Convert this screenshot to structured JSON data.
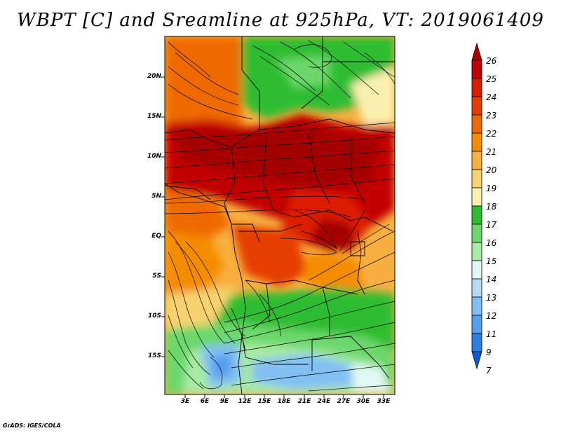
{
  "title": "WBPT [C] and Sreamline at 925hPa, VT: 2019061409",
  "credit": "GrADS: IGES/COLA",
  "latitude_labels": [
    "20N",
    "15N",
    "10N",
    "5N",
    "EQ",
    "5S",
    "10S",
    "15S"
  ],
  "longitude_labels": [
    "3E",
    "6E",
    "9E",
    "12E",
    "15E",
    "18E",
    "21E",
    "24E",
    "27E",
    "30E",
    "33E"
  ],
  "colorbar": {
    "labels": [
      "26",
      "25",
      "24",
      "23",
      "22",
      "21",
      "20",
      "19",
      "18",
      "17",
      "16",
      "15",
      "14",
      "13",
      "12",
      "11",
      "9",
      "7"
    ],
    "colors": [
      "#a50000",
      "#c20000",
      "#dc1e00",
      "#e63c00",
      "#ee6a00",
      "#f58c00",
      "#f7b040",
      "#f9d270",
      "#faf0b0",
      "#2ebd32",
      "#6cd86c",
      "#a8eaa4",
      "#e2f8f6",
      "#b4dcf8",
      "#82c0f4",
      "#549ef0",
      "#2a7ee6",
      "#0a5cd8"
    ]
  },
  "colors": {
    "hot": "#c81000",
    "warm": "#f58c00",
    "mild": "#f7b040",
    "cool_green": "#2ebd32",
    "light_green": "#a8eaa4",
    "cold_blue": "#82c0f4"
  }
}
